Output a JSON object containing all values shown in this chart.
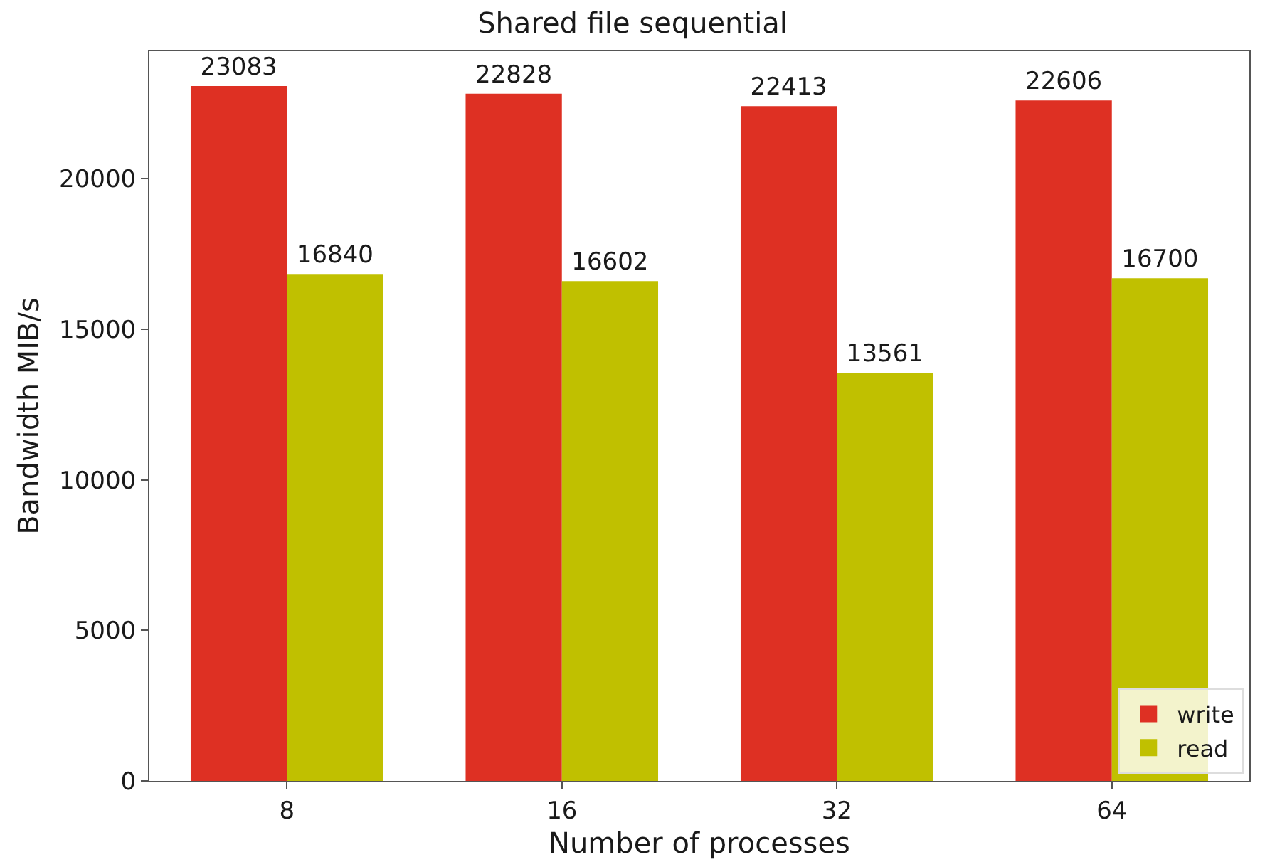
{
  "chart_data": {
    "type": "bar",
    "title": "Shared file sequential",
    "xlabel": "Number of processes",
    "ylabel": "Bandwidth MIB/s",
    "categories": [
      "8",
      "16",
      "32",
      "64"
    ],
    "series": [
      {
        "name": "write",
        "color": "#de3023",
        "values": [
          23083,
          22828,
          22413,
          22606
        ]
      },
      {
        "name": "read",
        "color": "#c0c000",
        "values": [
          16840,
          16602,
          13561,
          16700
        ]
      }
    ],
    "ylim": [
      0,
      24240
    ],
    "yticks": [
      0,
      5000,
      10000,
      15000,
      20000
    ],
    "data_labels": true,
    "legend": "bottom right"
  }
}
